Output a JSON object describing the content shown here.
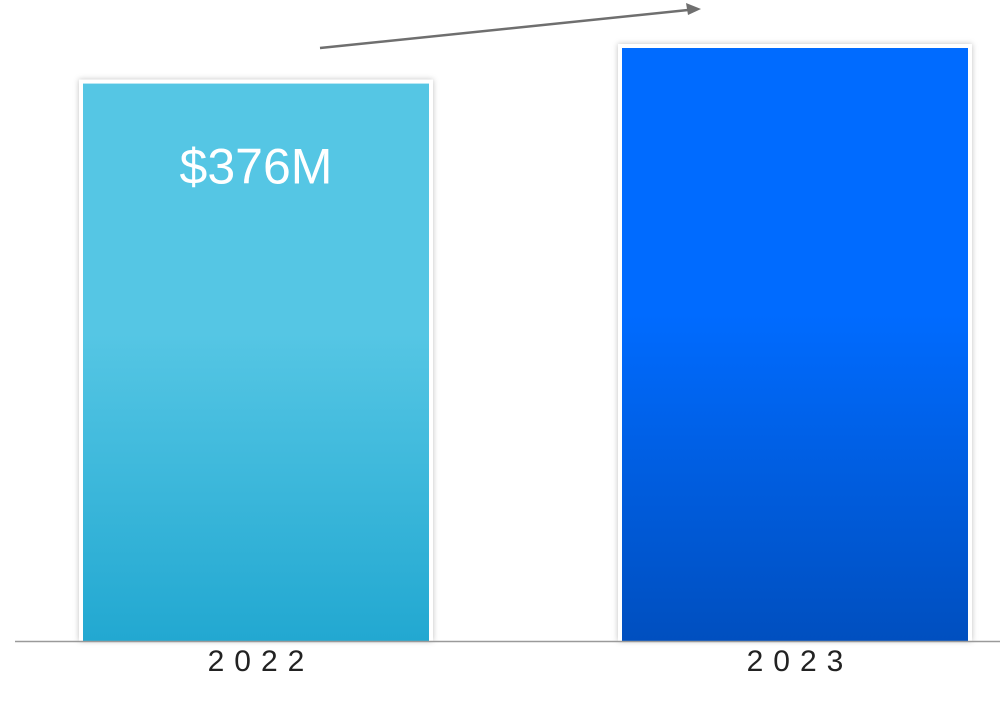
{
  "chart_data": {
    "type": "bar",
    "categories": [
      "2022",
      "2023"
    ],
    "values": [
      376,
      400
    ],
    "data_labels": [
      "$376M",
      ""
    ],
    "colors": [
      {
        "top": "#55c6e4",
        "bottom": "#22a8d1"
      },
      {
        "top": "#006bff",
        "bottom": "#004fbf"
      }
    ],
    "axis_line_color": "#9a9a9a",
    "trend_arrow_color": "#6f6f6f",
    "trend_arrow": true,
    "grid": false,
    "legend": "none",
    "ylim": [
      0,
      400
    ],
    "title": "",
    "xlabel": "",
    "ylabel": ""
  }
}
